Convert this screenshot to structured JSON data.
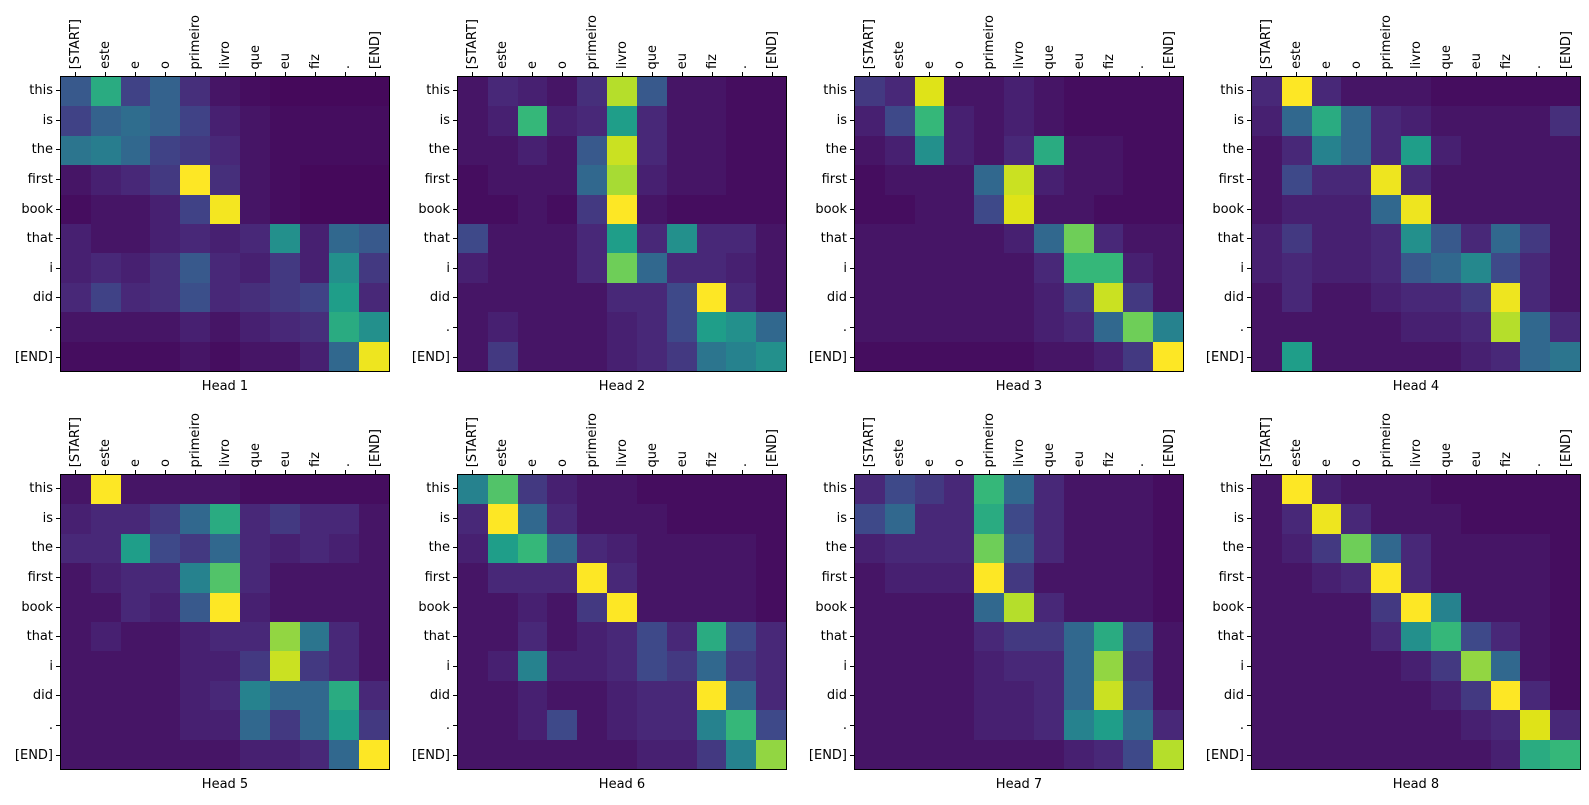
{
  "chart_data": {
    "type": "heatmap",
    "layout": "2x4 grid of transformer attention-head heatmaps, x tick labels rotated 90 deg on top axis, y tick labels on left, subplot title below each plot",
    "colormap_name": "viridis",
    "colormap": [
      "#440154",
      "#482878",
      "#3e4989",
      "#31688e",
      "#26828e",
      "#1f9e89",
      "#35b779",
      "#6ece58",
      "#b5de2b",
      "#dfe318",
      "#fde725"
    ],
    "value_range": [
      0,
      1
    ],
    "x_labels": [
      "[START]",
      "este",
      "e",
      "o",
      "primeiro",
      "livro",
      "que",
      "eu",
      "fiz",
      ".",
      "[END]"
    ],
    "y_labels": [
      "this",
      "is",
      "the",
      "first",
      "book",
      "that",
      "i",
      "did",
      ".",
      "[END]"
    ],
    "heads": [
      {
        "title": "Head 1",
        "values": [
          [
            0.25,
            0.55,
            0.18,
            0.28,
            0.12,
            0.05,
            0.03,
            0.02,
            0.02,
            0.02,
            0.02
          ],
          [
            0.18,
            0.28,
            0.32,
            0.28,
            0.18,
            0.08,
            0.05,
            0.03,
            0.03,
            0.03,
            0.03
          ],
          [
            0.35,
            0.38,
            0.3,
            0.18,
            0.15,
            0.1,
            0.05,
            0.03,
            0.03,
            0.03,
            0.03
          ],
          [
            0.05,
            0.08,
            0.1,
            0.15,
            1.0,
            0.12,
            0.05,
            0.03,
            0.02,
            0.02,
            0.02
          ],
          [
            0.03,
            0.05,
            0.05,
            0.08,
            0.18,
            0.97,
            0.05,
            0.03,
            0.02,
            0.02,
            0.02
          ],
          [
            0.08,
            0.05,
            0.05,
            0.08,
            0.1,
            0.08,
            0.1,
            0.45,
            0.08,
            0.3,
            0.25
          ],
          [
            0.08,
            0.1,
            0.08,
            0.12,
            0.25,
            0.1,
            0.08,
            0.15,
            0.08,
            0.45,
            0.15
          ],
          [
            0.1,
            0.18,
            0.1,
            0.12,
            0.22,
            0.1,
            0.12,
            0.15,
            0.18,
            0.5,
            0.1
          ],
          [
            0.05,
            0.05,
            0.05,
            0.05,
            0.08,
            0.05,
            0.08,
            0.1,
            0.12,
            0.55,
            0.45
          ],
          [
            0.03,
            0.03,
            0.03,
            0.03,
            0.05,
            0.03,
            0.05,
            0.05,
            0.08,
            0.3,
            0.95
          ]
        ]
      },
      {
        "title": "Head 2",
        "values": [
          [
            0.05,
            0.1,
            0.08,
            0.05,
            0.12,
            0.8,
            0.25,
            0.05,
            0.05,
            0.03,
            0.03
          ],
          [
            0.05,
            0.08,
            0.6,
            0.08,
            0.1,
            0.5,
            0.1,
            0.05,
            0.05,
            0.03,
            0.03
          ],
          [
            0.05,
            0.05,
            0.08,
            0.05,
            0.25,
            0.85,
            0.1,
            0.05,
            0.05,
            0.03,
            0.03
          ],
          [
            0.03,
            0.05,
            0.05,
            0.05,
            0.3,
            0.78,
            0.08,
            0.05,
            0.05,
            0.03,
            0.03
          ],
          [
            0.03,
            0.03,
            0.05,
            0.03,
            0.15,
            1.0,
            0.05,
            0.03,
            0.03,
            0.03,
            0.03
          ],
          [
            0.2,
            0.05,
            0.05,
            0.05,
            0.1,
            0.5,
            0.1,
            0.45,
            0.1,
            0.1,
            0.05
          ],
          [
            0.08,
            0.05,
            0.05,
            0.05,
            0.1,
            0.7,
            0.3,
            0.1,
            0.1,
            0.08,
            0.05
          ],
          [
            0.05,
            0.05,
            0.05,
            0.05,
            0.05,
            0.1,
            0.1,
            0.2,
            1.0,
            0.1,
            0.05
          ],
          [
            0.05,
            0.08,
            0.05,
            0.05,
            0.05,
            0.08,
            0.1,
            0.2,
            0.5,
            0.45,
            0.3
          ],
          [
            0.05,
            0.15,
            0.05,
            0.05,
            0.05,
            0.08,
            0.1,
            0.15,
            0.35,
            0.4,
            0.45
          ]
        ]
      },
      {
        "title": "Head 3",
        "values": [
          [
            0.15,
            0.1,
            0.9,
            0.05,
            0.05,
            0.08,
            0.05,
            0.03,
            0.03,
            0.03,
            0.03
          ],
          [
            0.08,
            0.2,
            0.6,
            0.08,
            0.05,
            0.08,
            0.05,
            0.03,
            0.03,
            0.03,
            0.03
          ],
          [
            0.05,
            0.08,
            0.45,
            0.08,
            0.05,
            0.1,
            0.55,
            0.05,
            0.05,
            0.03,
            0.03
          ],
          [
            0.03,
            0.05,
            0.05,
            0.05,
            0.3,
            0.85,
            0.08,
            0.05,
            0.05,
            0.03,
            0.03
          ],
          [
            0.03,
            0.03,
            0.05,
            0.05,
            0.2,
            0.9,
            0.05,
            0.05,
            0.03,
            0.03,
            0.03
          ],
          [
            0.05,
            0.05,
            0.05,
            0.05,
            0.05,
            0.08,
            0.3,
            0.7,
            0.1,
            0.05,
            0.05
          ],
          [
            0.05,
            0.05,
            0.05,
            0.05,
            0.05,
            0.05,
            0.1,
            0.6,
            0.6,
            0.08,
            0.05
          ],
          [
            0.05,
            0.05,
            0.05,
            0.05,
            0.05,
            0.05,
            0.08,
            0.15,
            0.85,
            0.15,
            0.05
          ],
          [
            0.05,
            0.05,
            0.05,
            0.05,
            0.05,
            0.05,
            0.08,
            0.1,
            0.3,
            0.7,
            0.4
          ],
          [
            0.03,
            0.03,
            0.03,
            0.03,
            0.03,
            0.03,
            0.05,
            0.05,
            0.08,
            0.15,
            1.0
          ]
        ]
      },
      {
        "title": "Head 4",
        "values": [
          [
            0.1,
            1.0,
            0.1,
            0.05,
            0.05,
            0.05,
            0.03,
            0.03,
            0.03,
            0.03,
            0.03
          ],
          [
            0.08,
            0.3,
            0.55,
            0.3,
            0.1,
            0.08,
            0.05,
            0.05,
            0.05,
            0.05,
            0.12
          ],
          [
            0.05,
            0.1,
            0.4,
            0.3,
            0.1,
            0.5,
            0.08,
            0.05,
            0.05,
            0.05,
            0.05
          ],
          [
            0.05,
            0.2,
            0.1,
            0.1,
            0.95,
            0.1,
            0.05,
            0.05,
            0.05,
            0.05,
            0.05
          ],
          [
            0.05,
            0.08,
            0.08,
            0.08,
            0.3,
            0.95,
            0.05,
            0.05,
            0.05,
            0.05,
            0.05
          ],
          [
            0.08,
            0.15,
            0.08,
            0.08,
            0.1,
            0.45,
            0.25,
            0.1,
            0.3,
            0.15,
            0.05
          ],
          [
            0.08,
            0.1,
            0.08,
            0.08,
            0.1,
            0.25,
            0.3,
            0.42,
            0.2,
            0.1,
            0.05
          ],
          [
            0.05,
            0.1,
            0.05,
            0.05,
            0.08,
            0.1,
            0.1,
            0.15,
            0.95,
            0.1,
            0.05
          ],
          [
            0.05,
            0.05,
            0.05,
            0.05,
            0.05,
            0.08,
            0.08,
            0.1,
            0.8,
            0.3,
            0.1
          ],
          [
            0.05,
            0.5,
            0.05,
            0.05,
            0.05,
            0.05,
            0.05,
            0.08,
            0.1,
            0.3,
            0.35
          ]
        ]
      },
      {
        "title": "Head 5",
        "values": [
          [
            0.05,
            1.0,
            0.05,
            0.05,
            0.05,
            0.05,
            0.03,
            0.03,
            0.03,
            0.03,
            0.03
          ],
          [
            0.08,
            0.1,
            0.1,
            0.15,
            0.3,
            0.55,
            0.1,
            0.15,
            0.1,
            0.1,
            0.05
          ],
          [
            0.1,
            0.1,
            0.5,
            0.2,
            0.15,
            0.3,
            0.1,
            0.08,
            0.1,
            0.08,
            0.05
          ],
          [
            0.05,
            0.08,
            0.1,
            0.1,
            0.4,
            0.65,
            0.1,
            0.05,
            0.05,
            0.05,
            0.05
          ],
          [
            0.05,
            0.05,
            0.1,
            0.08,
            0.25,
            1.0,
            0.08,
            0.05,
            0.05,
            0.05,
            0.05
          ],
          [
            0.05,
            0.08,
            0.05,
            0.05,
            0.08,
            0.1,
            0.1,
            0.75,
            0.35,
            0.1,
            0.05
          ],
          [
            0.05,
            0.05,
            0.05,
            0.05,
            0.08,
            0.08,
            0.15,
            0.85,
            0.15,
            0.1,
            0.05
          ],
          [
            0.05,
            0.05,
            0.05,
            0.05,
            0.08,
            0.1,
            0.4,
            0.3,
            0.3,
            0.55,
            0.1
          ],
          [
            0.05,
            0.05,
            0.05,
            0.05,
            0.08,
            0.08,
            0.3,
            0.15,
            0.3,
            0.5,
            0.15
          ],
          [
            0.05,
            0.05,
            0.05,
            0.05,
            0.05,
            0.05,
            0.08,
            0.08,
            0.1,
            0.3,
            1.0
          ]
        ]
      },
      {
        "title": "Head 6",
        "values": [
          [
            0.4,
            0.65,
            0.15,
            0.08,
            0.05,
            0.05,
            0.03,
            0.03,
            0.03,
            0.03,
            0.03
          ],
          [
            0.1,
            1.0,
            0.3,
            0.1,
            0.05,
            0.05,
            0.05,
            0.03,
            0.03,
            0.03,
            0.03
          ],
          [
            0.08,
            0.5,
            0.6,
            0.3,
            0.1,
            0.08,
            0.05,
            0.05,
            0.05,
            0.05,
            0.03
          ],
          [
            0.05,
            0.1,
            0.1,
            0.1,
            1.0,
            0.1,
            0.05,
            0.05,
            0.05,
            0.05,
            0.03
          ],
          [
            0.05,
            0.05,
            0.08,
            0.05,
            0.15,
            1.0,
            0.05,
            0.05,
            0.05,
            0.05,
            0.03
          ],
          [
            0.05,
            0.05,
            0.1,
            0.05,
            0.08,
            0.1,
            0.2,
            0.1,
            0.55,
            0.2,
            0.1
          ],
          [
            0.05,
            0.08,
            0.4,
            0.08,
            0.08,
            0.1,
            0.2,
            0.15,
            0.3,
            0.15,
            0.1
          ],
          [
            0.05,
            0.05,
            0.08,
            0.05,
            0.05,
            0.08,
            0.1,
            0.1,
            1.0,
            0.3,
            0.1
          ],
          [
            0.05,
            0.05,
            0.08,
            0.2,
            0.05,
            0.08,
            0.1,
            0.1,
            0.4,
            0.6,
            0.2
          ],
          [
            0.05,
            0.05,
            0.05,
            0.05,
            0.05,
            0.05,
            0.08,
            0.08,
            0.15,
            0.4,
            0.75
          ]
        ]
      },
      {
        "title": "Head 7",
        "values": [
          [
            0.1,
            0.2,
            0.15,
            0.1,
            0.6,
            0.3,
            0.1,
            0.05,
            0.05,
            0.05,
            0.03
          ],
          [
            0.2,
            0.3,
            0.1,
            0.1,
            0.55,
            0.2,
            0.1,
            0.05,
            0.05,
            0.05,
            0.03
          ],
          [
            0.08,
            0.1,
            0.1,
            0.1,
            0.7,
            0.25,
            0.1,
            0.05,
            0.05,
            0.05,
            0.03
          ],
          [
            0.05,
            0.08,
            0.08,
            0.08,
            1.0,
            0.15,
            0.05,
            0.05,
            0.05,
            0.05,
            0.03
          ],
          [
            0.05,
            0.05,
            0.05,
            0.05,
            0.3,
            0.8,
            0.1,
            0.05,
            0.05,
            0.05,
            0.03
          ],
          [
            0.05,
            0.05,
            0.05,
            0.05,
            0.1,
            0.15,
            0.15,
            0.3,
            0.55,
            0.2,
            0.05
          ],
          [
            0.05,
            0.05,
            0.05,
            0.05,
            0.08,
            0.1,
            0.1,
            0.3,
            0.75,
            0.15,
            0.05
          ],
          [
            0.05,
            0.05,
            0.05,
            0.05,
            0.08,
            0.08,
            0.1,
            0.3,
            0.85,
            0.2,
            0.05
          ],
          [
            0.05,
            0.05,
            0.05,
            0.05,
            0.08,
            0.08,
            0.1,
            0.4,
            0.5,
            0.3,
            0.1
          ],
          [
            0.05,
            0.05,
            0.05,
            0.05,
            0.05,
            0.05,
            0.05,
            0.08,
            0.1,
            0.2,
            0.8
          ]
        ]
      },
      {
        "title": "Head 8",
        "values": [
          [
            0.05,
            1.0,
            0.08,
            0.05,
            0.05,
            0.05,
            0.03,
            0.03,
            0.03,
            0.03,
            0.03
          ],
          [
            0.05,
            0.1,
            0.95,
            0.1,
            0.05,
            0.05,
            0.05,
            0.03,
            0.03,
            0.03,
            0.03
          ],
          [
            0.05,
            0.08,
            0.15,
            0.7,
            0.3,
            0.1,
            0.05,
            0.05,
            0.05,
            0.05,
            0.03
          ],
          [
            0.05,
            0.05,
            0.08,
            0.1,
            1.0,
            0.1,
            0.05,
            0.05,
            0.05,
            0.05,
            0.03
          ],
          [
            0.05,
            0.05,
            0.05,
            0.05,
            0.15,
            1.0,
            0.4,
            0.05,
            0.05,
            0.05,
            0.03
          ],
          [
            0.05,
            0.05,
            0.05,
            0.05,
            0.1,
            0.45,
            0.6,
            0.2,
            0.1,
            0.05,
            0.03
          ],
          [
            0.05,
            0.05,
            0.05,
            0.05,
            0.05,
            0.08,
            0.15,
            0.75,
            0.3,
            0.05,
            0.03
          ],
          [
            0.05,
            0.05,
            0.05,
            0.05,
            0.05,
            0.05,
            0.08,
            0.15,
            1.0,
            0.1,
            0.03
          ],
          [
            0.05,
            0.05,
            0.05,
            0.05,
            0.05,
            0.05,
            0.05,
            0.08,
            0.1,
            0.9,
            0.1
          ],
          [
            0.05,
            0.05,
            0.05,
            0.05,
            0.05,
            0.05,
            0.05,
            0.05,
            0.08,
            0.55,
            0.6
          ]
        ]
      }
    ]
  }
}
